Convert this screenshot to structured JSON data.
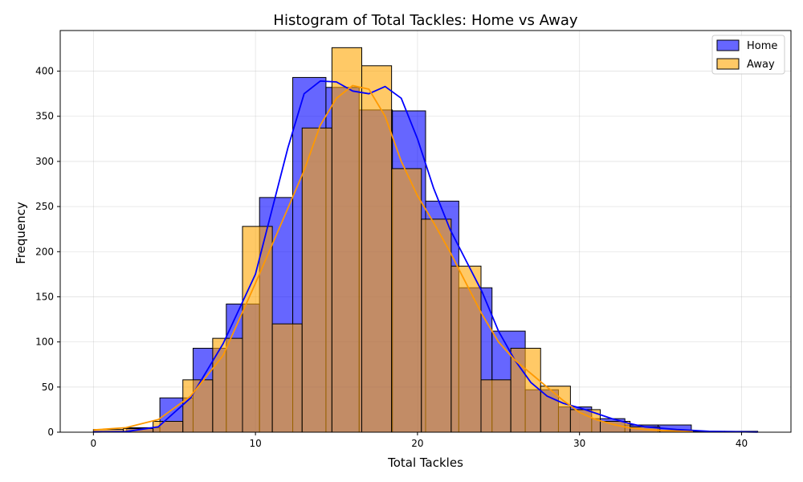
{
  "chart_data": {
    "type": "histogram",
    "title": "Histogram of Total Tackles: Home vs Away",
    "xlabel": "Total Tackles",
    "ylabel": "Frequency",
    "xlim": [
      -2.05,
      43.05
    ],
    "ylim": [
      0,
      445
    ],
    "xticks": [
      0,
      10,
      20,
      30,
      40
    ],
    "yticks": [
      0,
      50,
      100,
      150,
      200,
      250,
      300,
      350,
      400
    ],
    "grid": true,
    "legend_position": "top-right",
    "series": [
      {
        "name": "Home",
        "color": "#0000ff",
        "kde_color": "#0000ff",
        "bins": [
          {
            "x0": 0,
            "x1": 2.05,
            "count": 1
          },
          {
            "x0": 2.05,
            "x1": 4.1,
            "count": 5
          },
          {
            "x0": 4.1,
            "x1": 6.15,
            "count": 38
          },
          {
            "x0": 6.15,
            "x1": 8.2,
            "count": 93
          },
          {
            "x0": 8.2,
            "x1": 10.25,
            "count": 142
          },
          {
            "x0": 10.25,
            "x1": 12.3,
            "count": 260
          },
          {
            "x0": 12.3,
            "x1": 14.35,
            "count": 393
          },
          {
            "x0": 14.35,
            "x1": 16.4,
            "count": 382
          },
          {
            "x0": 16.4,
            "x1": 18.45,
            "count": 357
          },
          {
            "x0": 18.45,
            "x1": 20.5,
            "count": 356
          },
          {
            "x0": 20.5,
            "x1": 22.55,
            "count": 256
          },
          {
            "x0": 22.55,
            "x1": 24.6,
            "count": 160
          },
          {
            "x0": 24.6,
            "x1": 26.65,
            "count": 112
          },
          {
            "x0": 26.65,
            "x1": 28.7,
            "count": 47
          },
          {
            "x0": 28.7,
            "x1": 30.75,
            "count": 28
          },
          {
            "x0": 30.75,
            "x1": 32.8,
            "count": 15
          },
          {
            "x0": 32.8,
            "x1": 34.85,
            "count": 8
          },
          {
            "x0": 34.85,
            "x1": 36.9,
            "count": 8
          },
          {
            "x0": 36.9,
            "x1": 38.95,
            "count": 1
          },
          {
            "x0": 38.95,
            "x1": 41,
            "count": 1
          }
        ],
        "kde": [
          [
            0,
            0.3
          ],
          [
            2,
            0.6
          ],
          [
            4,
            6
          ],
          [
            6,
            38
          ],
          [
            8,
            98
          ],
          [
            10,
            175
          ],
          [
            12,
            315
          ],
          [
            13,
            375
          ],
          [
            14,
            389
          ],
          [
            15,
            388
          ],
          [
            16,
            378
          ],
          [
            17,
            375
          ],
          [
            18,
            383
          ],
          [
            19,
            370
          ],
          [
            20,
            325
          ],
          [
            21,
            270
          ],
          [
            22,
            225
          ],
          [
            23,
            190
          ],
          [
            24,
            155
          ],
          [
            25,
            112
          ],
          [
            26,
            80
          ],
          [
            27,
            55
          ],
          [
            28,
            40
          ],
          [
            29,
            32
          ],
          [
            30,
            27
          ],
          [
            31,
            21
          ],
          [
            32,
            15
          ],
          [
            33,
            10
          ],
          [
            34,
            6
          ],
          [
            36,
            3
          ],
          [
            38,
            1
          ],
          [
            41,
            0.2
          ]
        ]
      },
      {
        "name": "Away",
        "color": "#ffa500",
        "kde_color": "#ff9900",
        "bins": [
          {
            "x0": 0,
            "x1": 1.84,
            "count": 3
          },
          {
            "x0": 1.84,
            "x1": 3.68,
            "count": 4
          },
          {
            "x0": 3.68,
            "x1": 5.52,
            "count": 12
          },
          {
            "x0": 5.52,
            "x1": 7.36,
            "count": 58
          },
          {
            "x0": 7.36,
            "x1": 9.2,
            "count": 104
          },
          {
            "x0": 9.2,
            "x1": 11.04,
            "count": 228
          },
          {
            "x0": 11.04,
            "x1": 12.88,
            "count": 120
          },
          {
            "x0": 12.88,
            "x1": 14.72,
            "count": 337
          },
          {
            "x0": 14.72,
            "x1": 16.56,
            "count": 426
          },
          {
            "x0": 16.56,
            "x1": 18.4,
            "count": 406
          },
          {
            "x0": 18.4,
            "x1": 20.24,
            "count": 292
          },
          {
            "x0": 20.24,
            "x1": 22.08,
            "count": 236
          },
          {
            "x0": 22.08,
            "x1": 23.92,
            "count": 184
          },
          {
            "x0": 23.92,
            "x1": 25.76,
            "count": 58
          },
          {
            "x0": 25.76,
            "x1": 27.6,
            "count": 93
          },
          {
            "x0": 27.6,
            "x1": 29.44,
            "count": 51
          },
          {
            "x0": 29.44,
            "x1": 31.28,
            "count": 25
          },
          {
            "x0": 31.28,
            "x1": 33.12,
            "count": 12
          },
          {
            "x0": 33.12,
            "x1": 34.96,
            "count": 6
          },
          {
            "x0": 34.96,
            "x1": 36.8,
            "count": 2
          }
        ],
        "kde": [
          [
            0,
            2.5
          ],
          [
            2,
            5
          ],
          [
            4,
            14
          ],
          [
            6,
            40
          ],
          [
            8,
            85
          ],
          [
            10,
            165
          ],
          [
            12,
            248
          ],
          [
            13,
            290
          ],
          [
            14,
            340
          ],
          [
            15,
            370
          ],
          [
            16,
            384
          ],
          [
            17,
            380
          ],
          [
            18,
            350
          ],
          [
            19,
            300
          ],
          [
            20,
            262
          ],
          [
            21,
            232
          ],
          [
            22,
            200
          ],
          [
            23,
            165
          ],
          [
            24,
            130
          ],
          [
            25,
            100
          ],
          [
            26,
            80
          ],
          [
            27,
            65
          ],
          [
            28,
            50
          ],
          [
            29,
            35
          ],
          [
            30,
            22
          ],
          [
            31,
            14
          ],
          [
            32,
            9
          ],
          [
            33,
            5
          ],
          [
            34,
            3
          ],
          [
            35,
            2
          ],
          [
            37,
            0.5
          ]
        ]
      }
    ]
  }
}
